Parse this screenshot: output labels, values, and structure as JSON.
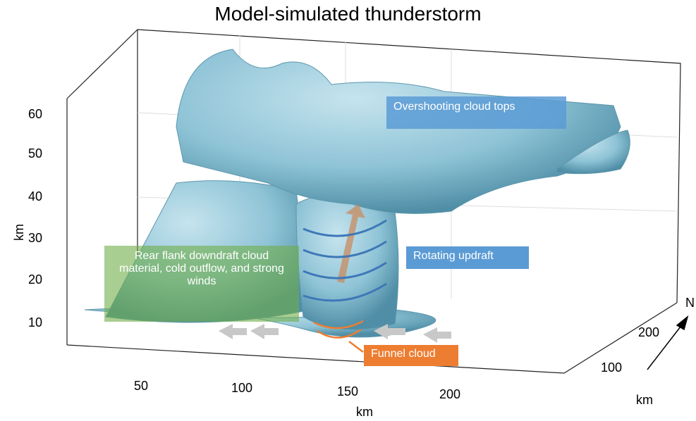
{
  "title": "Model-simulated thunderstorm",
  "z_axis": {
    "label": "km",
    "ticks": [
      "10",
      "20",
      "30",
      "40",
      "50",
      "60"
    ]
  },
  "x_axis": {
    "label": "km",
    "ticks": [
      "50",
      "100",
      "150",
      "200"
    ]
  },
  "y_axis": {
    "label": "km",
    "ticks": [
      "100",
      "200"
    ]
  },
  "compass": "N",
  "annotations": [
    {
      "text": "Overshooting cloud tops"
    },
    {
      "text": "Rotating updraft"
    },
    {
      "text": "Rear flank downdraft cloud material, cold outflow, and strong winds"
    },
    {
      "text": "Funnel cloud"
    }
  ]
}
